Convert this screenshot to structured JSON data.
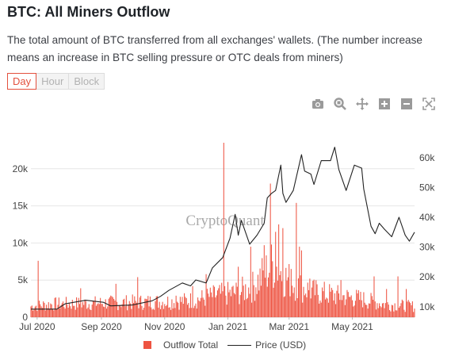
{
  "header": {
    "title": "BTC: All Miners Outflow",
    "description": "The total amount of BTC transferred from all exchanges' wallets. (The number increase means an increase in BTC selling pressure or OTC deals from miners)"
  },
  "interval_tabs": [
    {
      "label": "Day",
      "active": true
    },
    {
      "label": "Hour",
      "active": false
    },
    {
      "label": "Block",
      "active": false
    }
  ],
  "toolbar_icons": [
    "camera-icon",
    "zoom-icon",
    "pan-icon",
    "zoom-in-icon",
    "zoom-out-icon",
    "autoscale-icon"
  ],
  "watermark": "CryptoQuant",
  "colors": {
    "bars": "#ee5442",
    "price_line": "#222222",
    "accent": "#e3503e",
    "grid": "#e6e6e6"
  },
  "chart_data": {
    "type": "bar",
    "title": "BTC: All Miners Outflow",
    "x_start": "2020-06-25",
    "x_end": "2021-06-30",
    "x_tick_labels": [
      "Jul 2020",
      "Sep 2020",
      "Nov 2020",
      "Jan 2021",
      "Mar 2021",
      "May 2021"
    ],
    "x_tick_dates": [
      "2020-07-01",
      "2020-09-01",
      "2020-11-01",
      "2021-01-01",
      "2021-03-01",
      "2021-05-01"
    ],
    "y_left": {
      "ticks": [
        0,
        5000,
        10000,
        15000,
        20000
      ],
      "tick_labels": [
        "0",
        "5k",
        "10k",
        "15k",
        "20k"
      ],
      "range": [
        0,
        23500
      ]
    },
    "y_right": {
      "ticks": [
        10000,
        20000,
        30000,
        40000,
        50000,
        60000
      ],
      "tick_labels": [
        "10k",
        "20k",
        "30k",
        "40k",
        "50k",
        "60k"
      ],
      "range": [
        6500,
        65000
      ]
    },
    "series": [
      {
        "name": "Outflow Total",
        "kind": "bar",
        "axis": "left",
        "anchors": [
          [
            "2020-06-25",
            1500
          ],
          [
            "2020-07-15",
            1800
          ],
          [
            "2020-08-15",
            1900
          ],
          [
            "2020-09-15",
            2000
          ],
          [
            "2020-10-15",
            2100
          ],
          [
            "2020-11-15",
            2200
          ],
          [
            "2020-12-01",
            2400
          ],
          [
            "2020-12-20",
            3000
          ],
          [
            "2021-01-10",
            3400
          ],
          [
            "2021-01-25",
            4200
          ],
          [
            "2021-02-05",
            6000
          ],
          [
            "2021-02-15",
            7500
          ],
          [
            "2021-02-25",
            5500
          ],
          [
            "2021-03-10",
            4300
          ],
          [
            "2021-03-25",
            3500
          ],
          [
            "2021-04-15",
            3000
          ],
          [
            "2021-05-10",
            2500
          ],
          [
            "2021-06-01",
            1800
          ],
          [
            "2021-06-30",
            1500
          ]
        ],
        "spikes": [
          [
            "2020-07-02",
            7600
          ],
          [
            "2020-08-12",
            3900
          ],
          [
            "2020-09-15",
            4500
          ],
          [
            "2020-10-06",
            5400
          ],
          [
            "2020-11-12",
            2900
          ],
          [
            "2020-11-28",
            4200
          ],
          [
            "2020-12-11",
            5800
          ],
          [
            "2020-12-28",
            23500
          ],
          [
            "2021-01-11",
            6800
          ],
          [
            "2021-01-23",
            9500
          ],
          [
            "2021-02-05",
            9700
          ],
          [
            "2021-02-11",
            18000
          ],
          [
            "2021-02-16",
            11500
          ],
          [
            "2021-02-19",
            12500
          ],
          [
            "2021-02-23",
            12000
          ],
          [
            "2021-03-03",
            6500
          ],
          [
            "2021-03-08",
            15400
          ],
          [
            "2021-03-11",
            9500
          ],
          [
            "2021-03-13",
            9000
          ],
          [
            "2021-03-21",
            5200
          ],
          [
            "2021-04-20",
            5000
          ],
          [
            "2021-05-22",
            5500
          ],
          [
            "2021-06-03",
            3800
          ],
          [
            "2021-06-14",
            5500
          ],
          [
            "2021-06-22",
            3800
          ]
        ]
      },
      {
        "name": "Price (USD)",
        "kind": "line",
        "axis": "right",
        "points": [
          [
            "2020-06-25",
            9200
          ],
          [
            "2020-07-20",
            9200
          ],
          [
            "2020-07-28",
            11000
          ],
          [
            "2020-08-17",
            12200
          ],
          [
            "2020-09-03",
            11500
          ],
          [
            "2020-09-10",
            10300
          ],
          [
            "2020-10-01",
            10600
          ],
          [
            "2020-10-20",
            12000
          ],
          [
            "2020-10-28",
            13500
          ],
          [
            "2020-11-05",
            15500
          ],
          [
            "2020-11-18",
            18000
          ],
          [
            "2020-11-26",
            17000
          ],
          [
            "2020-12-01",
            19000
          ],
          [
            "2020-12-11",
            18000
          ],
          [
            "2020-12-17",
            23000
          ],
          [
            "2020-12-27",
            26500
          ],
          [
            "2021-01-03",
            33000
          ],
          [
            "2021-01-08",
            41000
          ],
          [
            "2021-01-11",
            34000
          ],
          [
            "2021-01-14",
            39000
          ],
          [
            "2021-01-22",
            31000
          ],
          [
            "2021-01-29",
            34000
          ],
          [
            "2021-02-05",
            38000
          ],
          [
            "2021-02-08",
            46500
          ],
          [
            "2021-02-12",
            48000
          ],
          [
            "2021-02-16",
            49000
          ],
          [
            "2021-02-21",
            57500
          ],
          [
            "2021-02-23",
            48000
          ],
          [
            "2021-02-26",
            45000
          ],
          [
            "2021-03-05",
            49000
          ],
          [
            "2021-03-13",
            61000
          ],
          [
            "2021-03-16",
            55500
          ],
          [
            "2021-03-22",
            54500
          ],
          [
            "2021-03-25",
            51000
          ],
          [
            "2021-04-01",
            59000
          ],
          [
            "2021-04-10",
            59000
          ],
          [
            "2021-04-14",
            63500
          ],
          [
            "2021-04-18",
            56000
          ],
          [
            "2021-04-25",
            49000
          ],
          [
            "2021-05-03",
            57500
          ],
          [
            "2021-05-10",
            56500
          ],
          [
            "2021-05-12",
            49500
          ],
          [
            "2021-05-19",
            37000
          ],
          [
            "2021-05-23",
            34500
          ],
          [
            "2021-05-27",
            38000
          ],
          [
            "2021-06-01",
            36000
          ],
          [
            "2021-06-08",
            33500
          ],
          [
            "2021-06-15",
            40000
          ],
          [
            "2021-06-21",
            34000
          ],
          [
            "2021-06-25",
            32000
          ],
          [
            "2021-06-30",
            35000
          ]
        ]
      }
    ],
    "legend_position": "bottom-center",
    "grid": true
  }
}
